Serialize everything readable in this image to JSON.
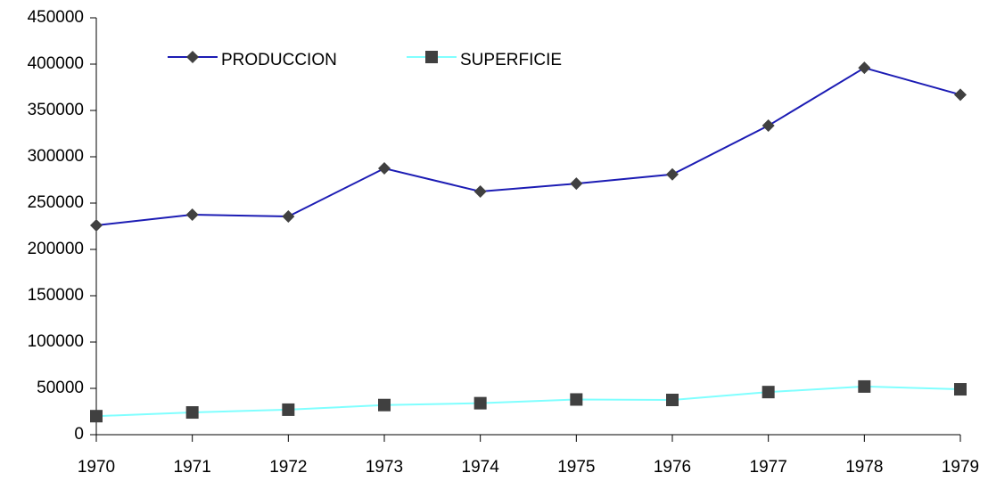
{
  "chart_data": {
    "type": "line",
    "categories": [
      "1970",
      "1971",
      "1972",
      "1973",
      "1974",
      "1975",
      "1976",
      "1977",
      "1978",
      "1979"
    ],
    "series": [
      {
        "name": "PRODUCCION",
        "color": "#1c1cb4",
        "marker": "diamond",
        "marker_color": "#404040",
        "values": [
          226000,
          237500,
          235600,
          287500,
          262500,
          271000,
          281000,
          333600,
          396000,
          367000
        ]
      },
      {
        "name": "SUPERFICIE",
        "color": "#80ffff",
        "marker": "square",
        "marker_color": "#404040",
        "values": [
          20000,
          24000,
          27000,
          32000,
          34000,
          38000,
          37500,
          46000,
          52000,
          49000
        ]
      }
    ],
    "ylim": [
      0,
      450000
    ],
    "yticks": [
      0,
      50000,
      100000,
      150000,
      200000,
      250000,
      300000,
      350000,
      400000,
      450000
    ],
    "grid": false,
    "legend": "top-left"
  }
}
